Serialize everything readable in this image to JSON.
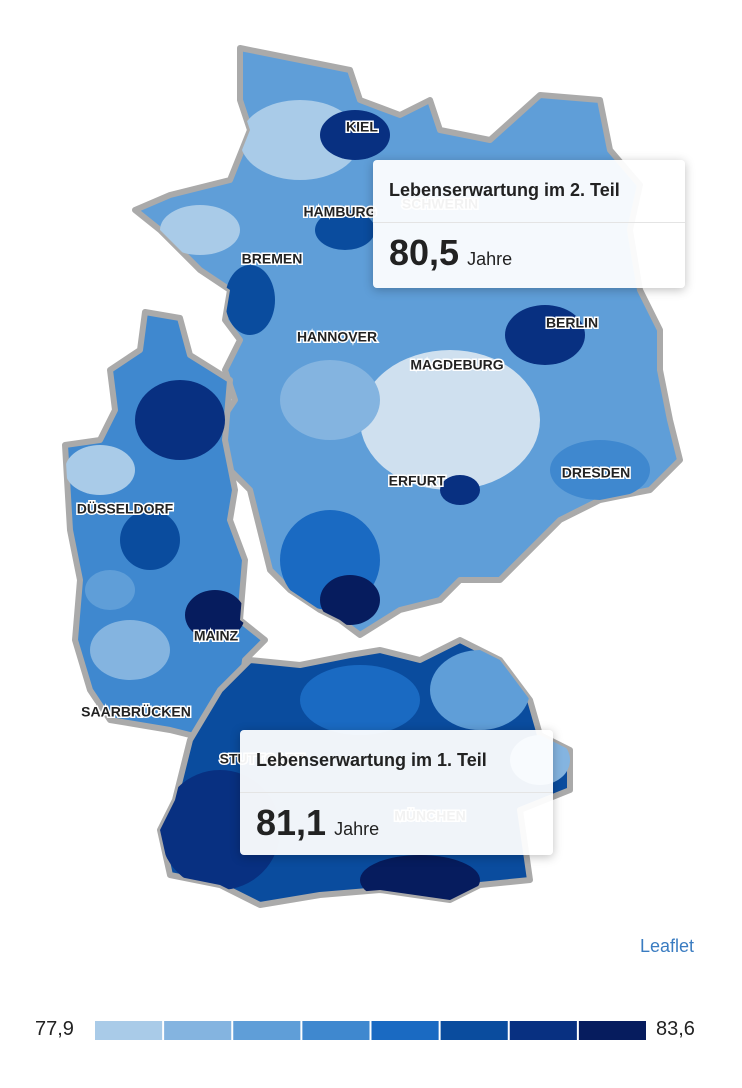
{
  "map": {
    "labels": [
      "KIEL",
      "HAMBURG",
      "SCHWERIN",
      "BREMEN",
      "HANNOVER",
      "MAGDEBURG",
      "BERLIN",
      "DÜSSELDORF",
      "ERFURT",
      "DRESDEN",
      "MAINZ",
      "SAARBRÜCKEN",
      "STUTTGART",
      "MÜNCHEN"
    ],
    "tooltips": [
      {
        "title": "Lebenserwartung im 2. Teil",
        "value": "80,5",
        "unit": "Jahre"
      },
      {
        "title": "Lebenserwartung im 1. Teil",
        "value": "81,1",
        "unit": "Jahre"
      }
    ],
    "attribution": "Leaflet",
    "legend": {
      "min": "77,9",
      "max": "83,6",
      "colors": [
        "#a9cbe8",
        "#84b4e0",
        "#5f9ed8",
        "#3f88cf",
        "#1a6ac2",
        "#0a4c9e",
        "#083081",
        "#061c5e"
      ]
    }
  }
}
